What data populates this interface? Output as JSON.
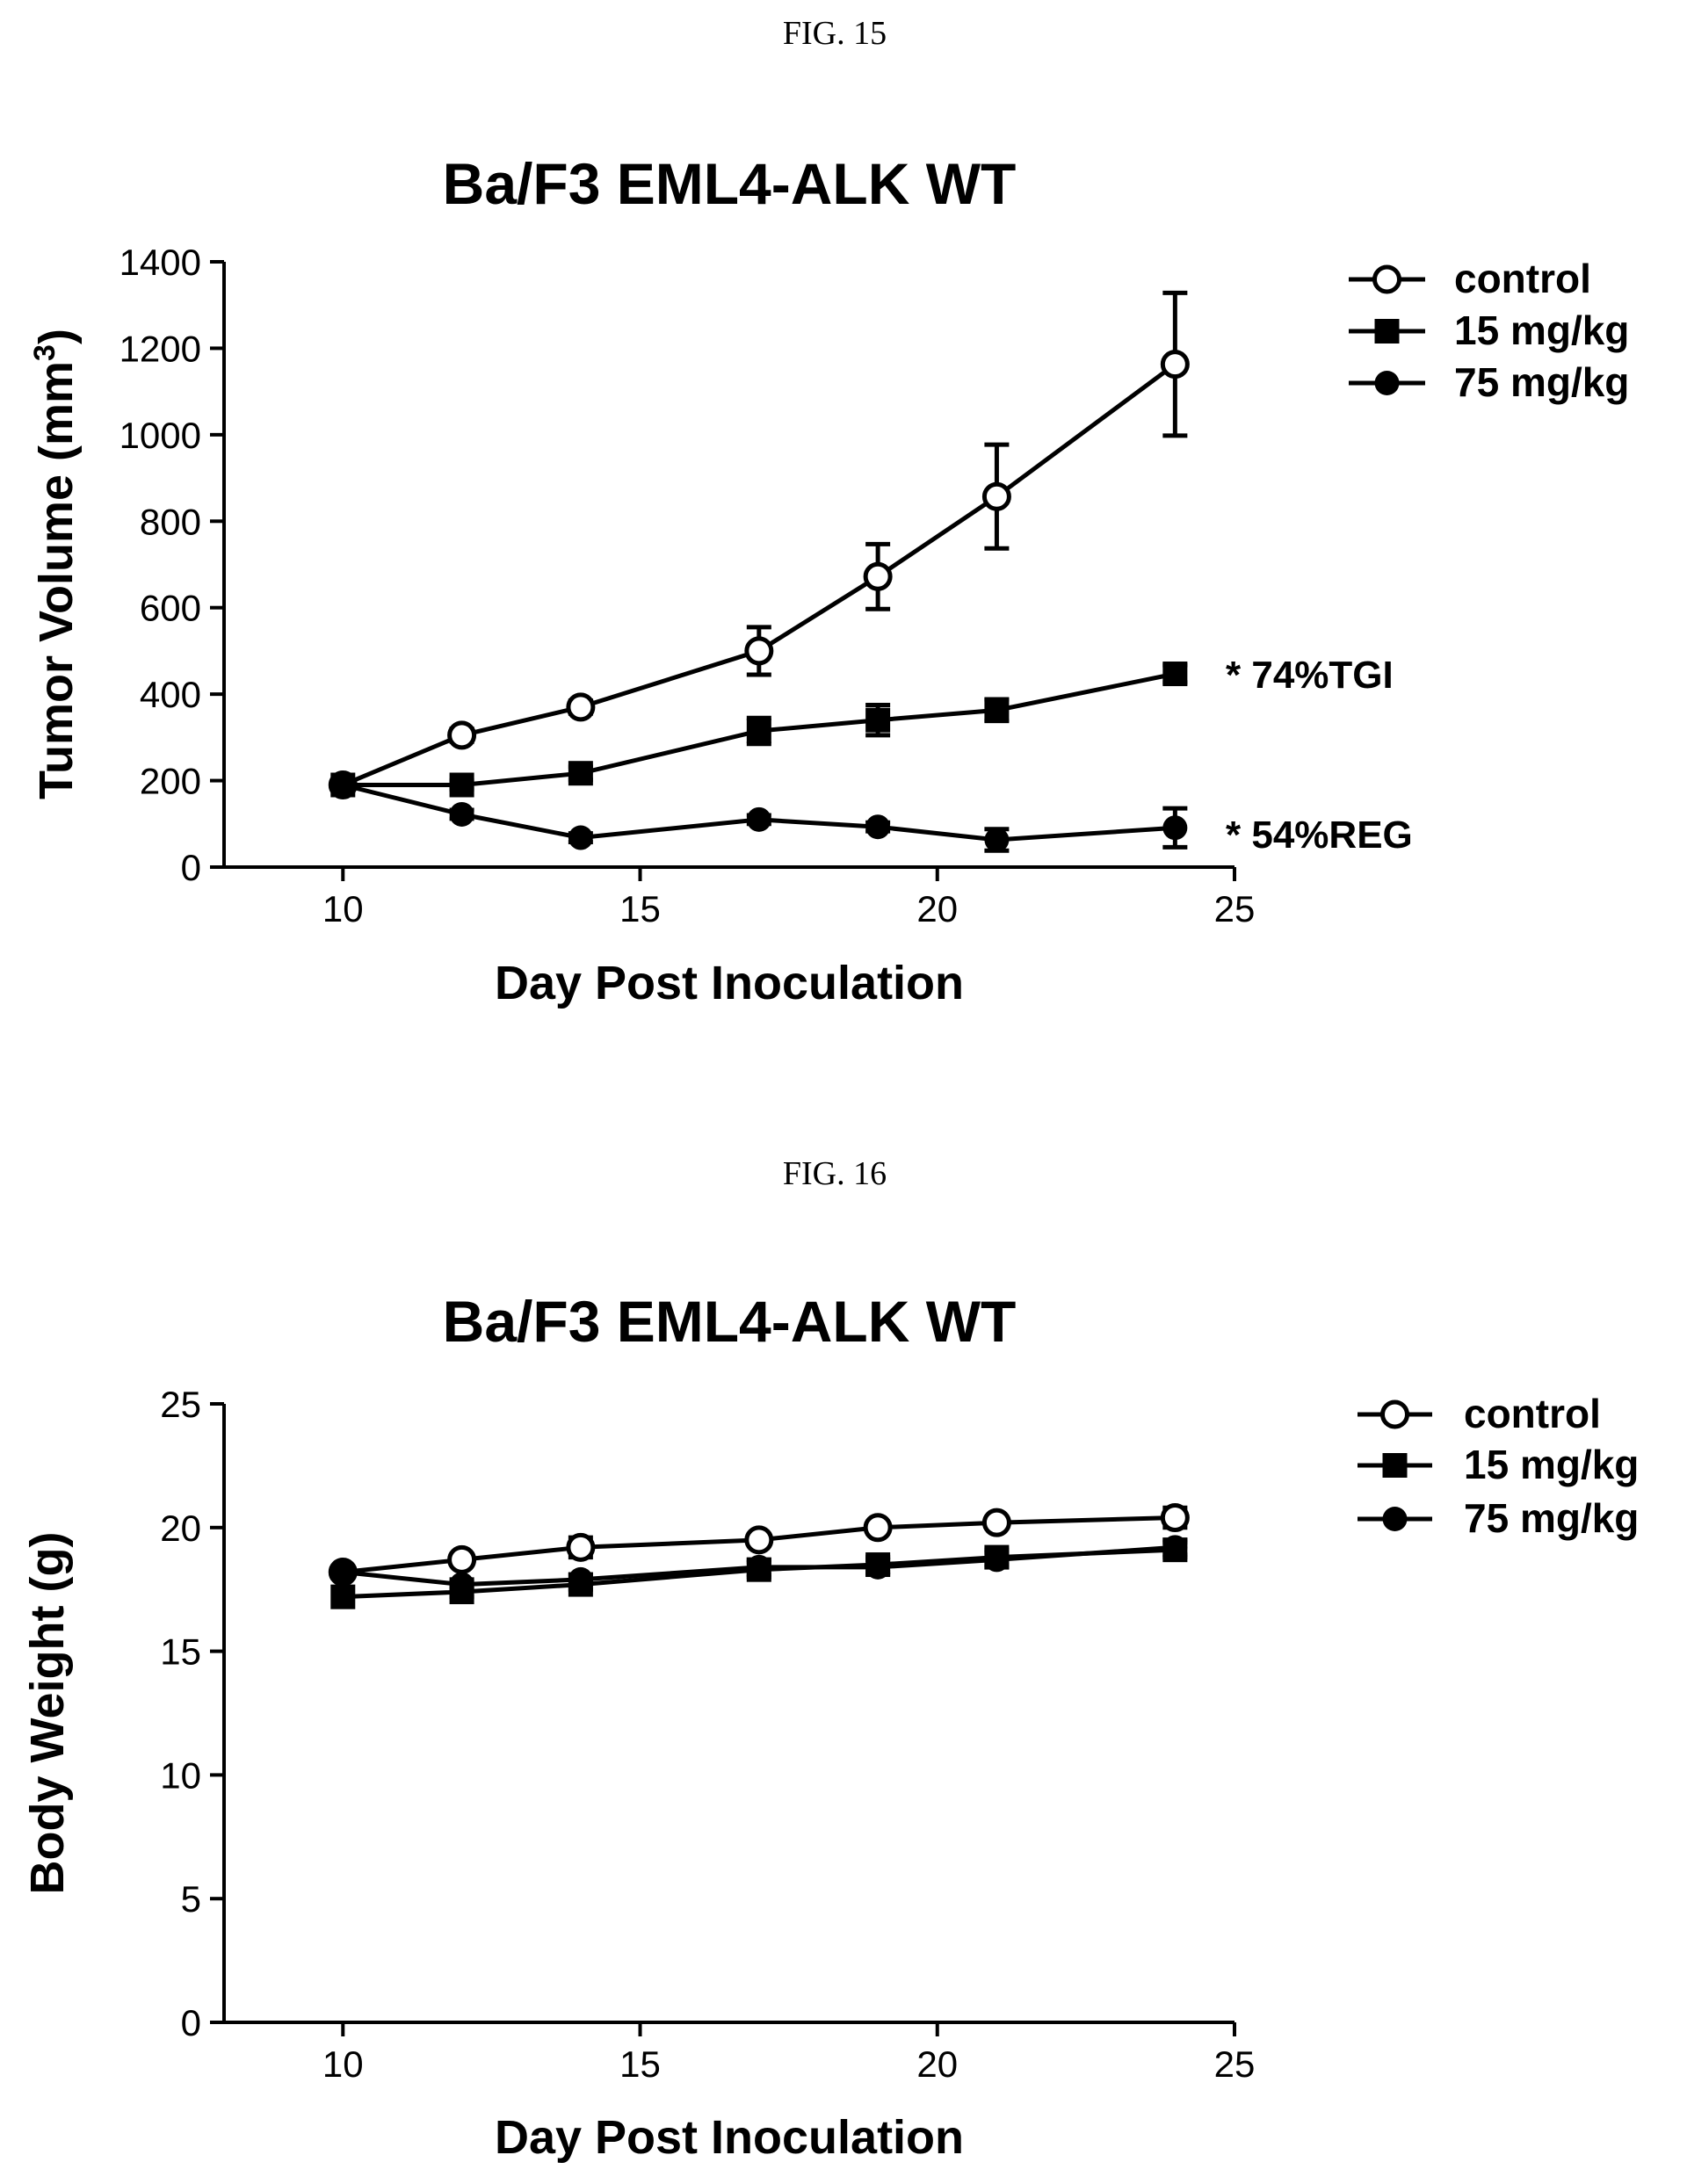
{
  "chart_data": [
    {
      "caption": "FIG. 15",
      "type": "line",
      "title": "Ba/F3 EML4-ALK WT",
      "xlabel": "Day Post Inoculation",
      "ylabel": "Tumor Volume (mm",
      "ylabel_sup": "3",
      "ylabel_close": ")",
      "xlim": [
        8,
        25
      ],
      "ylim": [
        0,
        1400
      ],
      "xticks": [
        10,
        15,
        20,
        25
      ],
      "yticks": [
        0,
        200,
        400,
        600,
        800,
        1000,
        1200,
        1400
      ],
      "grid": false,
      "legend_position": "top-right",
      "series": [
        {
          "name": "control",
          "marker": "open-circle",
          "x": [
            10,
            12,
            14,
            17,
            19,
            21,
            24
          ],
          "y": [
            190,
            305,
            370,
            500,
            672,
            857,
            1163
          ],
          "err": [
            0,
            15,
            15,
            55,
            75,
            120,
            165
          ]
        },
        {
          "name": "15 mg/kg",
          "marker": "filled-square",
          "x": [
            10,
            12,
            14,
            17,
            19,
            21,
            24
          ],
          "y": [
            190,
            190,
            217,
            315,
            340,
            363,
            447
          ],
          "err": [
            0,
            10,
            15,
            30,
            35,
            25,
            20
          ]
        },
        {
          "name": "75 mg/kg",
          "marker": "filled-circle",
          "x": [
            10,
            12,
            14,
            17,
            19,
            21,
            24
          ],
          "y": [
            190,
            122,
            68,
            110,
            93,
            63,
            91
          ],
          "err": [
            0,
            10,
            10,
            10,
            10,
            25,
            45
          ]
        }
      ],
      "annotations": [
        {
          "text": "* 74%TGI",
          "x": 25,
          "y": 445
        },
        {
          "text": "* 54%REG",
          "x": 25,
          "y": 75
        }
      ]
    },
    {
      "caption": "FIG. 16",
      "type": "line",
      "title": "Ba/F3 EML4-ALK WT",
      "xlabel": "Day Post Inoculation",
      "ylabel": "Body Weight (g)",
      "xlim": [
        8,
        25
      ],
      "ylim": [
        0,
        25
      ],
      "xticks": [
        10,
        15,
        20,
        25
      ],
      "yticks": [
        0,
        5,
        10,
        15,
        20,
        25
      ],
      "grid": false,
      "legend_position": "top-right",
      "series": [
        {
          "name": "control",
          "marker": "open-circle",
          "x": [
            10,
            12,
            14,
            17,
            19,
            21,
            24
          ],
          "y": [
            18.2,
            18.7,
            19.2,
            19.5,
            20.0,
            20.2,
            20.4
          ],
          "err": [
            0,
            0.2,
            0.4,
            0.2,
            0.2,
            0.2,
            0.4
          ]
        },
        {
          "name": "15 mg/kg",
          "marker": "filled-square",
          "x": [
            10,
            12,
            14,
            17,
            19,
            21,
            24
          ],
          "y": [
            17.2,
            17.4,
            17.7,
            18.3,
            18.5,
            18.8,
            19.1
          ],
          "err": [
            0,
            0.2,
            0.2,
            0.3,
            0.3,
            0.3,
            0.3
          ]
        },
        {
          "name": "75 mg/kg",
          "marker": "filled-circle",
          "x": [
            10,
            12,
            14,
            17,
            19,
            21,
            24
          ],
          "y": [
            18.2,
            17.7,
            17.9,
            18.4,
            18.4,
            18.7,
            19.2
          ],
          "err": [
            0,
            0.2,
            0.2,
            0.3,
            0.3,
            0.3,
            0.3
          ]
        }
      ],
      "annotations": []
    }
  ]
}
